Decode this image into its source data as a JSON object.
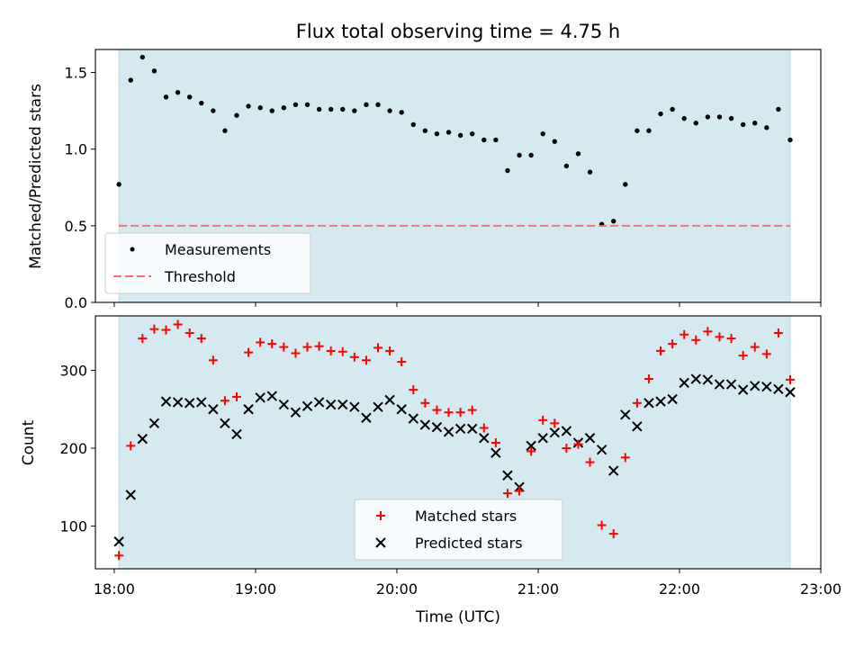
{
  "chart_data": [
    {
      "type": "scatter",
      "title": "Flux total observing time = 4.75 h",
      "ylabel": "Matched/Predicted stars",
      "ylim": [
        0,
        1.65
      ],
      "yticks": [
        "0.0",
        "0.5",
        "1.0",
        "1.5"
      ],
      "xlim": [
        "17:52",
        "23:00"
      ],
      "shaded_region": {
        "x": [
          "18:02",
          "22:47"
        ],
        "color": "#d4eaf0"
      },
      "legend_position": "lower-left",
      "threshold": {
        "name": "Threshold",
        "value": 0.5,
        "color": "#f07070",
        "style": "dashed",
        "x": [
          "18:02",
          "22:47"
        ]
      },
      "series": [
        {
          "name": "Measurements",
          "color": "#000000",
          "marker": "dot",
          "x": [
            "18:02",
            "18:07",
            "18:12",
            "18:17",
            "18:22",
            "18:27",
            "18:32",
            "18:37",
            "18:42",
            "18:47",
            "18:52",
            "18:57",
            "19:02",
            "19:07",
            "19:12",
            "19:17",
            "19:22",
            "19:27",
            "19:32",
            "19:37",
            "19:42",
            "19:47",
            "19:52",
            "19:57",
            "20:02",
            "20:07",
            "20:12",
            "20:17",
            "20:22",
            "20:27",
            "20:32",
            "20:37",
            "20:42",
            "20:47",
            "20:52",
            "20:57",
            "21:02",
            "21:07",
            "21:12",
            "21:17",
            "21:22",
            "21:27",
            "21:32",
            "21:37",
            "21:42",
            "21:47",
            "21:52",
            "21:57",
            "22:02",
            "22:07",
            "22:12",
            "22:17",
            "22:22",
            "22:27",
            "22:32",
            "22:37",
            "22:42",
            "22:47"
          ],
          "y": [
            0.77,
            1.45,
            1.6,
            1.51,
            1.34,
            1.37,
            1.34,
            1.3,
            1.25,
            1.12,
            1.22,
            1.28,
            1.27,
            1.25,
            1.27,
            1.29,
            1.29,
            1.26,
            1.26,
            1.26,
            1.25,
            1.29,
            1.29,
            1.25,
            1.24,
            1.16,
            1.12,
            1.1,
            1.11,
            1.09,
            1.1,
            1.06,
            1.06,
            0.86,
            0.96,
            0.96,
            1.1,
            1.05,
            0.89,
            0.97,
            0.85,
            0.51,
            0.53,
            0.77,
            1.12,
            1.12,
            1.23,
            1.26,
            1.2,
            1.17,
            1.21,
            1.21,
            1.2,
            1.16,
            1.17,
            1.14,
            1.26,
            1.06
          ]
        }
      ]
    },
    {
      "type": "scatter",
      "xlabel": "Time (UTC)",
      "ylabel": "Count",
      "ylim": [
        45,
        370
      ],
      "yticks": [
        "100",
        "200",
        "300"
      ],
      "xlim": [
        "17:52",
        "23:00"
      ],
      "xticks": [
        "18:00",
        "19:00",
        "20:00",
        "21:00",
        "22:00",
        "23:00"
      ],
      "shaded_region": {
        "x": [
          "18:02",
          "22:47"
        ],
        "color": "#d4eaf0"
      },
      "legend_position": "lower-center",
      "series": [
        {
          "name": "Matched stars",
          "color": "#ff0000",
          "marker": "plus",
          "x": [
            "18:02",
            "18:07",
            "18:12",
            "18:17",
            "18:22",
            "18:27",
            "18:32",
            "18:37",
            "18:42",
            "18:47",
            "18:52",
            "18:57",
            "19:02",
            "19:07",
            "19:12",
            "19:17",
            "19:22",
            "19:27",
            "19:32",
            "19:37",
            "19:42",
            "19:47",
            "19:52",
            "19:57",
            "20:02",
            "20:07",
            "20:12",
            "20:17",
            "20:22",
            "20:27",
            "20:32",
            "20:37",
            "20:42",
            "20:47",
            "20:52",
            "20:57",
            "21:02",
            "21:07",
            "21:12",
            "21:17",
            "21:22",
            "21:27",
            "21:32",
            "21:37",
            "21:42",
            "21:47",
            "21:52",
            "21:57",
            "22:02",
            "22:07",
            "22:12",
            "22:17",
            "22:22",
            "22:27",
            "22:32",
            "22:37",
            "22:42",
            "22:47"
          ],
          "y": [
            62,
            203,
            341,
            353,
            352,
            359,
            348,
            341,
            313,
            261,
            266,
            323,
            336,
            334,
            330,
            322,
            330,
            331,
            325,
            324,
            317,
            313,
            329,
            325,
            311,
            275,
            258,
            249,
            246,
            246,
            249,
            226,
            207,
            142,
            145,
            196,
            236,
            232,
            200,
            205,
            182,
            101,
            90,
            188,
            258,
            289,
            325,
            334,
            346,
            339,
            350,
            343,
            341,
            319,
            330,
            321,
            348,
            288
          ]
        },
        {
          "name": "Predicted stars",
          "color": "#000000",
          "marker": "x",
          "x": [
            "18:02",
            "18:07",
            "18:12",
            "18:17",
            "18:22",
            "18:27",
            "18:32",
            "18:37",
            "18:42",
            "18:47",
            "18:52",
            "18:57",
            "19:02",
            "19:07",
            "19:12",
            "19:17",
            "19:22",
            "19:27",
            "19:32",
            "19:37",
            "19:42",
            "19:47",
            "19:52",
            "19:57",
            "20:02",
            "20:07",
            "20:12",
            "20:17",
            "20:22",
            "20:27",
            "20:32",
            "20:37",
            "20:42",
            "20:47",
            "20:52",
            "20:57",
            "21:02",
            "21:07",
            "21:12",
            "21:17",
            "21:22",
            "21:27",
            "21:32",
            "21:37",
            "21:42",
            "21:47",
            "21:52",
            "21:57",
            "22:02",
            "22:07",
            "22:12",
            "22:17",
            "22:22",
            "22:27",
            "22:32",
            "22:37",
            "22:42",
            "22:47"
          ],
          "y": [
            80,
            140,
            212,
            232,
            260,
            259,
            258,
            259,
            250,
            232,
            218,
            250,
            265,
            267,
            256,
            246,
            254,
            259,
            256,
            256,
            253,
            239,
            253,
            262,
            250,
            238,
            230,
            227,
            221,
            225,
            225,
            213,
            194,
            165,
            150,
            203,
            213,
            220,
            222,
            207,
            213,
            198,
            171,
            243,
            228,
            258,
            260,
            263,
            284,
            289,
            288,
            282,
            282,
            275,
            280,
            279,
            276,
            272
          ]
        }
      ]
    }
  ]
}
